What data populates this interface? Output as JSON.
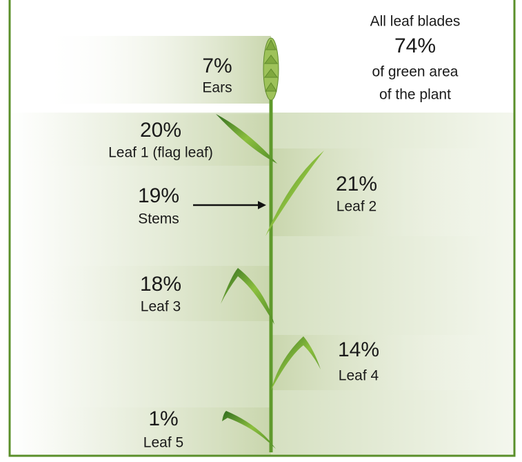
{
  "summary": {
    "line1": "All leaf blades",
    "percent": "74%",
    "line2": "of green area",
    "line3": "of the plant"
  },
  "parts": [
    {
      "percent": "7%",
      "label": "Ears"
    },
    {
      "percent": "20%",
      "label": "Leaf 1 (flag leaf)"
    },
    {
      "percent": "19%",
      "label": "Stems"
    },
    {
      "percent": "21%",
      "label": "Leaf 2"
    },
    {
      "percent": "18%",
      "label": "Leaf 3"
    },
    {
      "percent": "14%",
      "label": "Leaf 4"
    },
    {
      "percent": "1%",
      "label": "Leaf 5"
    }
  ]
}
